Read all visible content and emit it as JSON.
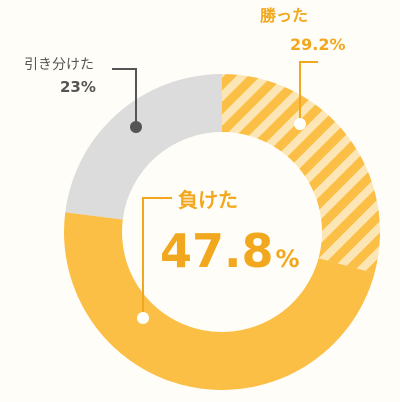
{
  "colors": {
    "background": "#fffdf7",
    "won": "#fbbf45",
    "won_stripe": "#fde6b6",
    "lost": "#fbbf45",
    "draw": "#dcdcdc",
    "won_text": "#f2a81e",
    "lost_text": "#f2a81e",
    "draw_text": "#555555",
    "draw_dot": "#555555",
    "callout_dot": "#ffffff"
  },
  "chart_data": {
    "type": "pie",
    "series": [
      {
        "name": "勝った",
        "value": 29.2,
        "display": "29.2%",
        "fill": "striped"
      },
      {
        "name": "負けた",
        "value": 47.8,
        "display_number": "47.8",
        "display_unit": "%",
        "fill": "solid"
      },
      {
        "name": "引き分けた",
        "value": 23,
        "display": "23%",
        "fill": "solid"
      }
    ]
  }
}
